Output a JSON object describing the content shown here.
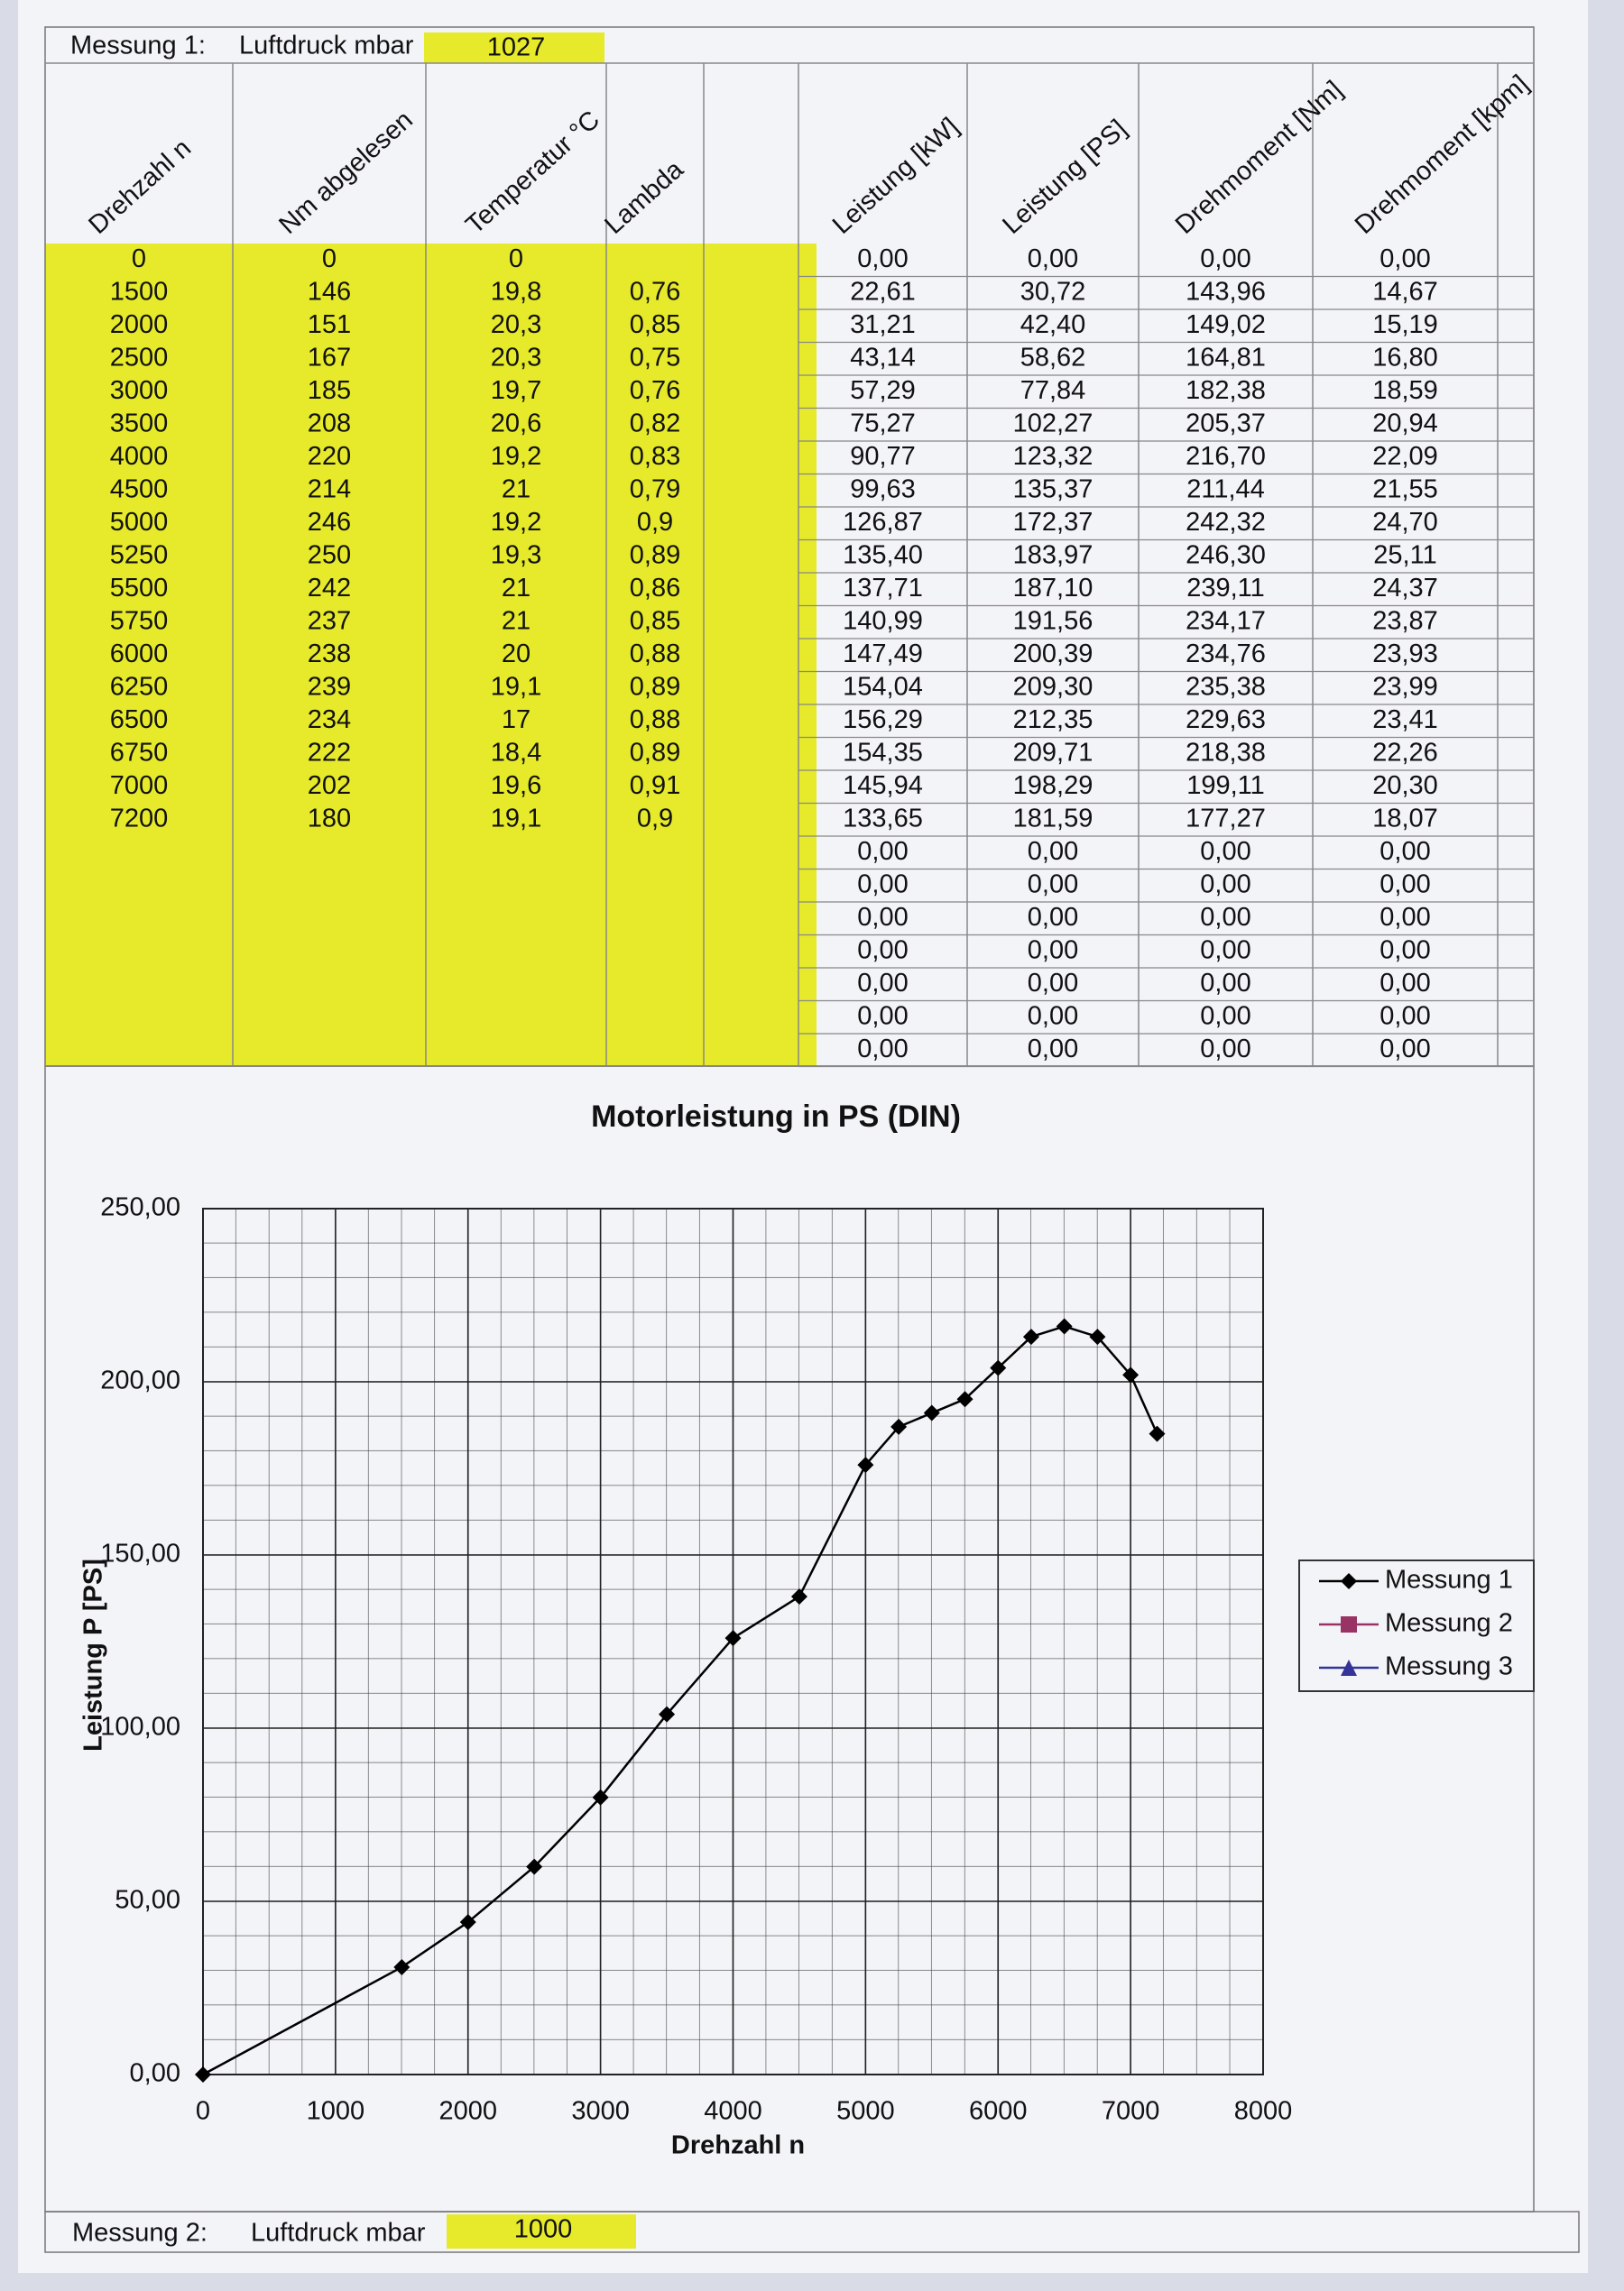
{
  "header": {
    "label": "Messung 1:",
    "pressure_label": "Luftdruck mbar",
    "pressure": "1027"
  },
  "table": {
    "columns": [
      "Drehzahl n",
      "Nm abgelesen",
      "Temperatur °C",
      "Lambda",
      "Leistung [kW]",
      "Leistung [PS]",
      "Drehmoment [Nm]",
      "Drehmoment [kpm]"
    ],
    "inputs": [
      [
        "0",
        "0",
        "0"
      ],
      [
        "1500",
        "146",
        "19,8",
        "0,76"
      ],
      [
        "2000",
        "151",
        "20,3",
        "0,85"
      ],
      [
        "2500",
        "167",
        "20,3",
        "0,75"
      ],
      [
        "3000",
        "185",
        "19,7",
        "0,76"
      ],
      [
        "3500",
        "208",
        "20,6",
        "0,82"
      ],
      [
        "4000",
        "220",
        "19,2",
        "0,83"
      ],
      [
        "4500",
        "214",
        "21",
        "0,79"
      ],
      [
        "5000",
        "246",
        "19,2",
        "0,9"
      ],
      [
        "5250",
        "250",
        "19,3",
        "0,89"
      ],
      [
        "5500",
        "242",
        "21",
        "0,86"
      ],
      [
        "5750",
        "237",
        "21",
        "0,85"
      ],
      [
        "6000",
        "238",
        "20",
        "0,88"
      ],
      [
        "6250",
        "239",
        "19,1",
        "0,89"
      ],
      [
        "6500",
        "234",
        "17",
        "0,88"
      ],
      [
        "6750",
        "222",
        "18,4",
        "0,89"
      ],
      [
        "7000",
        "202",
        "19,6",
        "0,91"
      ],
      [
        "7200",
        "180",
        "19,1",
        "0,9"
      ]
    ],
    "results": [
      [
        "0,00",
        "0,00",
        "0,00",
        "0,00"
      ],
      [
        "22,61",
        "30,72",
        "143,96",
        "14,67"
      ],
      [
        "31,21",
        "42,40",
        "149,02",
        "15,19"
      ],
      [
        "43,14",
        "58,62",
        "164,81",
        "16,80"
      ],
      [
        "57,29",
        "77,84",
        "182,38",
        "18,59"
      ],
      [
        "75,27",
        "102,27",
        "205,37",
        "20,94"
      ],
      [
        "90,77",
        "123,32",
        "216,70",
        "22,09"
      ],
      [
        "99,63",
        "135,37",
        "211,44",
        "21,55"
      ],
      [
        "126,87",
        "172,37",
        "242,32",
        "24,70"
      ],
      [
        "135,40",
        "183,97",
        "246,30",
        "25,11"
      ],
      [
        "137,71",
        "187,10",
        "239,11",
        "24,37"
      ],
      [
        "140,99",
        "191,56",
        "234,17",
        "23,87"
      ],
      [
        "147,49",
        "200,39",
        "234,76",
        "23,93"
      ],
      [
        "154,04",
        "209,30",
        "235,38",
        "23,99"
      ],
      [
        "156,29",
        "212,35",
        "229,63",
        "23,41"
      ],
      [
        "154,35",
        "209,71",
        "218,38",
        "22,26"
      ],
      [
        "145,94",
        "198,29",
        "199,11",
        "20,30"
      ],
      [
        "133,65",
        "181,59",
        "177,27",
        "18,07"
      ],
      [
        "0,00",
        "0,00",
        "0,00",
        "0,00"
      ],
      [
        "0,00",
        "0,00",
        "0,00",
        "0,00"
      ],
      [
        "0,00",
        "0,00",
        "0,00",
        "0,00"
      ],
      [
        "0,00",
        "0,00",
        "0,00",
        "0,00"
      ],
      [
        "0,00",
        "0,00",
        "0,00",
        "0,00"
      ],
      [
        "0,00",
        "0,00",
        "0,00",
        "0,00"
      ],
      [
        "0,00",
        "0,00",
        "0,00",
        "0,00"
      ]
    ]
  },
  "chart_data": {
    "type": "line",
    "title": "Motorleistung in PS (DIN)",
    "xlabel": "Drehzahl n",
    "ylabel": "Leistung P [PS]",
    "x": [
      0,
      1500,
      2000,
      2500,
      3000,
      3500,
      4000,
      4500,
      5000,
      5250,
      5500,
      5750,
      6000,
      6250,
      6500,
      6750,
      7000,
      7200
    ],
    "series": [
      {
        "name": "Messung 1",
        "color": "#000000",
        "marker": "diamond",
        "values": [
          0,
          31,
          44,
          60,
          80,
          104,
          126,
          138,
          176,
          187,
          191,
          195,
          204,
          213,
          216,
          213,
          202,
          185
        ]
      },
      {
        "name": "Messung 2",
        "color": "#993366",
        "marker": "square",
        "values": [
          null,
          null,
          null,
          null,
          null,
          null,
          null,
          null,
          null,
          null,
          null,
          null,
          null,
          null,
          null,
          null,
          null,
          null
        ]
      },
      {
        "name": "Messung 3",
        "color": "#333399",
        "marker": "triangle",
        "values": [
          null,
          null,
          null,
          null,
          null,
          null,
          null,
          null,
          null,
          null,
          null,
          null,
          null,
          null,
          null,
          null,
          null,
          null
        ]
      }
    ],
    "xlim": [
      0,
      8000
    ],
    "xticks": [
      0,
      1000,
      2000,
      3000,
      4000,
      5000,
      6000,
      7000,
      8000
    ],
    "ylim": [
      0,
      250
    ],
    "yticks": [
      {
        "value": 0,
        "label": "0,00"
      },
      {
        "value": 50,
        "label": "50,00"
      },
      {
        "value": 100,
        "label": "100,00"
      },
      {
        "value": 150,
        "label": "150,00"
      },
      {
        "value": 200,
        "label": "200,00"
      },
      {
        "value": 250,
        "label": "250,00"
      }
    ],
    "grid": true,
    "legend": "right"
  },
  "footer": {
    "label": "Messung 2:",
    "pressure_label": "Luftdruck mbar",
    "pressure": "1000"
  }
}
